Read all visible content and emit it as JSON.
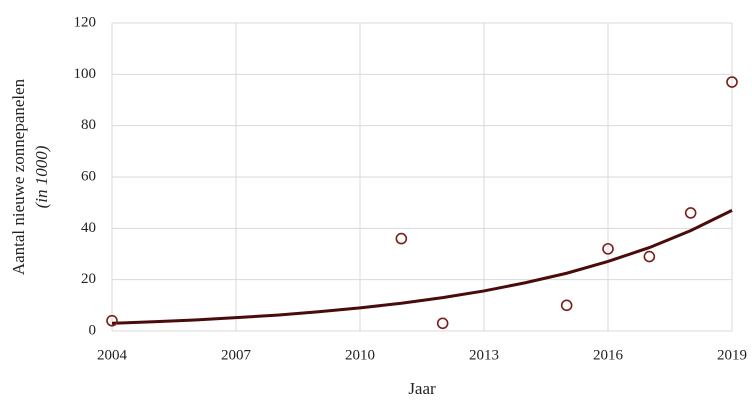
{
  "chart_data": {
    "type": "scatter",
    "x_label": "Jaar",
    "y_label": "Aantal nieuwe zonnepanelen",
    "y_label_unit": "(in 1000)",
    "xlim": [
      2004,
      2019
    ],
    "xticks": [
      2004,
      2007,
      2010,
      2013,
      2016,
      2019
    ],
    "ylim": [
      0,
      120
    ],
    "yticks": [
      0,
      20,
      40,
      60,
      80,
      100,
      120
    ],
    "grid": true,
    "series": [
      {
        "type": "scatter",
        "marker": "open-circle",
        "color": "#7a1e1e",
        "x": [
          2004,
          2011,
          2012,
          2015,
          2016,
          2017,
          2018,
          2019
        ],
        "values": [
          4,
          36,
          3,
          10,
          32,
          29,
          46,
          97
        ]
      },
      {
        "type": "line",
        "color": "#4a0b0b",
        "x": [
          2004,
          2005,
          2006,
          2007,
          2008,
          2009,
          2010,
          2011,
          2012,
          2013,
          2014,
          2015,
          2016,
          2017,
          2018,
          2019
        ],
        "values": [
          3,
          3.6,
          4.3,
          5.2,
          6.2,
          7.5,
          9,
          10.8,
          13,
          15.6,
          18.8,
          22.5,
          27.1,
          32.5,
          39.1,
          47
        ]
      }
    ]
  }
}
